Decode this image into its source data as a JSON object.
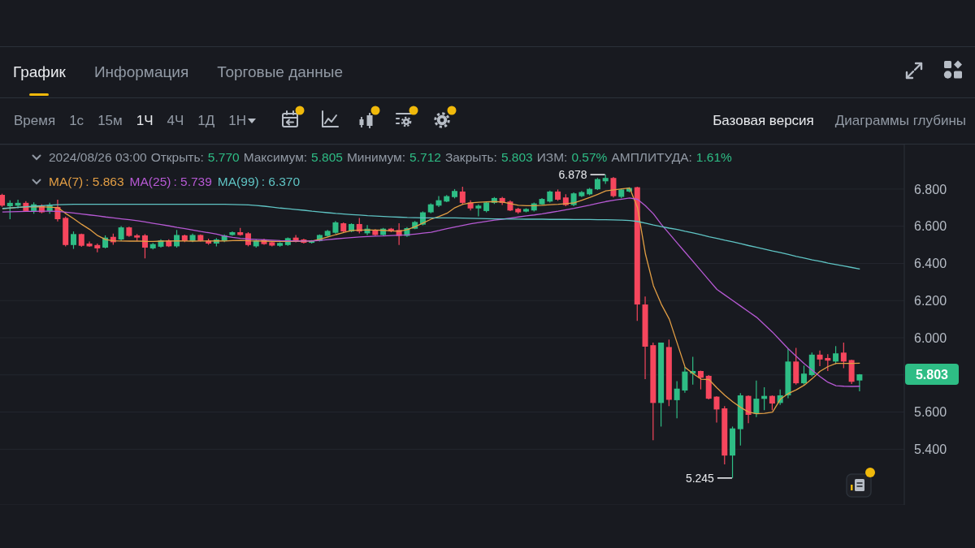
{
  "chart_data": {
    "type": "candlestick",
    "categories": [
      null,
      null,
      null,
      null,
      null,
      null,
      null,
      null,
      null,
      null,
      null,
      null,
      null,
      null,
      null,
      null,
      null,
      null,
      null,
      null,
      null,
      null,
      null,
      null,
      null,
      null,
      null,
      null,
      null,
      null,
      null,
      null,
      null,
      null,
      null,
      null,
      null,
      null,
      null,
      null,
      null,
      null,
      null,
      null,
      null,
      null,
      null,
      null,
      null,
      null,
      null,
      null,
      null,
      null,
      null,
      null,
      null,
      null,
      null,
      null,
      null,
      null,
      null,
      null,
      null,
      null,
      null,
      null,
      null,
      null,
      null,
      null,
      null,
      null,
      null,
      null,
      null,
      null,
      null,
      null,
      null,
      null,
      null,
      null,
      null,
      null,
      null,
      null,
      null,
      null,
      null,
      null,
      null,
      null,
      null,
      null,
      null,
      null,
      null,
      null,
      null,
      null,
      null,
      null,
      null,
      null,
      null,
      null,
      null
    ],
    "ohlc": [
      [
        6.769,
        6.775,
        6.705,
        6.711
      ],
      [
        6.708,
        6.74,
        6.638,
        6.726
      ],
      [
        6.711,
        6.743,
        6.696,
        6.726
      ],
      [
        6.726,
        6.735,
        6.677,
        6.682
      ],
      [
        6.682,
        6.729,
        6.667,
        6.718
      ],
      [
        6.711,
        6.718,
        6.67,
        6.675
      ],
      [
        6.682,
        6.726,
        6.667,
        6.714
      ],
      [
        6.704,
        6.743,
        6.626,
        6.638
      ],
      [
        6.645,
        6.652,
        6.492,
        6.499
      ],
      [
        6.499,
        6.572,
        6.478,
        6.558
      ],
      [
        6.558,
        6.56,
        6.49,
        6.495
      ],
      [
        6.507,
        6.518,
        6.489,
        6.492
      ],
      [
        6.499,
        6.507,
        6.46,
        6.481
      ],
      [
        6.485,
        6.551,
        6.481,
        6.539
      ],
      [
        6.543,
        6.56,
        6.5,
        6.514
      ],
      [
        6.529,
        6.601,
        6.521,
        6.594
      ],
      [
        6.594,
        6.598,
        6.543,
        6.548
      ],
      [
        6.551,
        6.558,
        6.521,
        6.539
      ],
      [
        6.551,
        6.558,
        6.427,
        6.485
      ],
      [
        6.481,
        6.51,
        6.475,
        6.504
      ],
      [
        6.49,
        6.53,
        6.485,
        6.524
      ],
      [
        6.524,
        6.53,
        6.488,
        6.492
      ],
      [
        6.492,
        6.58,
        6.485,
        6.553
      ],
      [
        6.551,
        6.555,
        6.515,
        6.521
      ],
      [
        6.521,
        6.56,
        6.515,
        6.553
      ],
      [
        6.553,
        6.556,
        6.518,
        6.521
      ],
      [
        6.524,
        6.533,
        6.5,
        6.507
      ],
      [
        6.507,
        6.536,
        6.492,
        6.529
      ],
      [
        6.521,
        6.556,
        6.515,
        6.551
      ],
      [
        6.553,
        6.572,
        6.55,
        6.568
      ],
      [
        6.568,
        6.591,
        6.55,
        6.553
      ],
      [
        6.562,
        6.568,
        6.492,
        6.499
      ],
      [
        6.492,
        6.529,
        6.485,
        6.524
      ],
      [
        6.529,
        6.533,
        6.5,
        6.504
      ],
      [
        6.514,
        6.518,
        6.492,
        6.496
      ],
      [
        6.495,
        6.514,
        6.49,
        6.51
      ],
      [
        6.499,
        6.54,
        6.495,
        6.536
      ],
      [
        6.539,
        6.553,
        6.514,
        6.521
      ],
      [
        6.529,
        6.533,
        6.507,
        6.511
      ],
      [
        6.511,
        6.525,
        6.507,
        6.521
      ],
      [
        6.521,
        6.556,
        6.518,
        6.553
      ],
      [
        6.548,
        6.58,
        6.543,
        6.575
      ],
      [
        6.565,
        6.628,
        6.56,
        6.621
      ],
      [
        6.616,
        6.621,
        6.568,
        6.572
      ],
      [
        6.572,
        6.616,
        6.568,
        6.612
      ],
      [
        6.612,
        6.645,
        6.562,
        6.572
      ],
      [
        6.562,
        6.606,
        6.553,
        6.587
      ],
      [
        6.58,
        6.584,
        6.548,
        6.553
      ],
      [
        6.553,
        6.591,
        6.548,
        6.587
      ],
      [
        6.587,
        6.591,
        6.568,
        6.572
      ],
      [
        6.58,
        6.616,
        6.499,
        6.548
      ],
      [
        6.548,
        6.595,
        6.543,
        6.59
      ],
      [
        6.587,
        6.628,
        6.584,
        6.623
      ],
      [
        6.609,
        6.68,
        6.605,
        6.675
      ],
      [
        6.675,
        6.723,
        6.67,
        6.718
      ],
      [
        6.711,
        6.762,
        6.704,
        6.74
      ],
      [
        6.733,
        6.768,
        6.73,
        6.762
      ],
      [
        6.757,
        6.8,
        6.75,
        6.79
      ],
      [
        6.787,
        6.813,
        6.718,
        6.726
      ],
      [
        6.728,
        6.74,
        6.685,
        6.696
      ],
      [
        6.696,
        6.718,
        6.653,
        6.711
      ],
      [
        6.682,
        6.733,
        6.675,
        6.728
      ],
      [
        6.726,
        6.757,
        6.72,
        6.752
      ],
      [
        6.752,
        6.758,
        6.714,
        6.726
      ],
      [
        6.733,
        6.74,
        6.682,
        6.685
      ],
      [
        6.694,
        6.699,
        6.667,
        6.675
      ],
      [
        6.679,
        6.697,
        6.675,
        6.693
      ],
      [
        6.685,
        6.728,
        6.68,
        6.723
      ],
      [
        6.718,
        6.752,
        6.714,
        6.747
      ],
      [
        6.733,
        6.792,
        6.728,
        6.787
      ],
      [
        6.787,
        6.798,
        6.737,
        6.743
      ],
      [
        6.755,
        6.772,
        6.708,
        6.714
      ],
      [
        6.714,
        6.782,
        6.708,
        6.777
      ],
      [
        6.762,
        6.79,
        6.757,
        6.784
      ],
      [
        6.772,
        6.806,
        6.767,
        6.801
      ],
      [
        6.799,
        6.86,
        6.795,
        6.854
      ],
      [
        6.842,
        6.878,
        6.828,
        6.86
      ],
      [
        6.86,
        6.865,
        6.755,
        6.762
      ],
      [
        6.758,
        6.804,
        6.75,
        6.798
      ],
      [
        6.787,
        6.81,
        6.782,
        6.806
      ],
      [
        6.81,
        6.813,
        6.091,
        6.179
      ],
      [
        6.179,
        6.222,
        5.777,
        5.952
      ],
      [
        5.96,
        5.974,
        5.449,
        5.649
      ],
      [
        5.649,
        5.974,
        5.522,
        5.974
      ],
      [
        5.95,
        5.99,
        5.632,
        5.666
      ],
      [
        5.664,
        5.766,
        5.566,
        5.726
      ],
      [
        5.716,
        5.843,
        5.704,
        5.818
      ],
      [
        5.807,
        5.897,
        5.748,
        5.821
      ],
      [
        5.821,
        5.823,
        5.722,
        5.785
      ],
      [
        5.795,
        5.799,
        5.668,
        5.672
      ],
      [
        5.683,
        5.685,
        5.544,
        5.614
      ],
      [
        5.62,
        5.632,
        5.318,
        5.366
      ],
      [
        5.366,
        5.522,
        5.245,
        5.512
      ],
      [
        5.508,
        5.702,
        5.42,
        5.69
      ],
      [
        5.687,
        5.69,
        5.54,
        5.585
      ],
      [
        5.591,
        5.77,
        5.573,
        5.672
      ],
      [
        5.671,
        5.734,
        5.61,
        5.687
      ],
      [
        5.687,
        5.69,
        5.61,
        5.646
      ],
      [
        5.649,
        5.722,
        5.639,
        5.69
      ],
      [
        5.69,
        5.941,
        5.675,
        5.872
      ],
      [
        5.872,
        5.945,
        5.748,
        5.755
      ],
      [
        5.755,
        5.85,
        5.748,
        5.807
      ],
      [
        5.799,
        5.92,
        5.792,
        5.909
      ],
      [
        5.909,
        5.931,
        5.847,
        5.883
      ],
      [
        5.891,
        5.912,
        5.821,
        5.877
      ],
      [
        5.872,
        5.955,
        5.858,
        5.916
      ],
      [
        5.92,
        5.974,
        5.836,
        5.872
      ],
      [
        5.88,
        5.882,
        5.751,
        5.763
      ],
      [
        5.77,
        5.805,
        5.712,
        5.803
      ]
    ],
    "colors": [
      "#f6465d",
      "#2ebd85",
      "#2ebd85",
      "#f6465d",
      "#2ebd85",
      "#f6465d",
      "#2ebd85",
      "#f6465d",
      "#f6465d",
      "#2ebd85",
      "#f6465d",
      "#f6465d",
      "#f6465d",
      "#2ebd85",
      "#f6465d",
      "#2ebd85",
      "#f6465d",
      "#f6465d",
      "#f6465d",
      "#2ebd85",
      "#2ebd85",
      "#f6465d",
      "#2ebd85",
      "#f6465d",
      "#2ebd85",
      "#f6465d",
      "#f6465d",
      "#2ebd85",
      "#2ebd85",
      "#2ebd85",
      "#f6465d",
      "#f6465d",
      "#2ebd85",
      "#f6465d",
      "#f6465d",
      "#2ebd85",
      "#2ebd85",
      "#f6465d",
      "#f6465d",
      "#2ebd85",
      "#2ebd85",
      "#2ebd85",
      "#2ebd85",
      "#f6465d",
      "#2ebd85",
      "#f6465d",
      "#2ebd85",
      "#f6465d",
      "#2ebd85",
      "#f6465d",
      "#f6465d",
      "#2ebd85",
      "#2ebd85",
      "#2ebd85",
      "#2ebd85",
      "#2ebd85",
      "#2ebd85",
      "#2ebd85",
      "#f6465d",
      "#f6465d",
      "#2ebd85",
      "#2ebd85",
      "#2ebd85",
      "#f6465d",
      "#f6465d",
      "#f6465d",
      "#2ebd85",
      "#2ebd85",
      "#2ebd85",
      "#2ebd85",
      "#f6465d",
      "#f6465d",
      "#2ebd85",
      "#2ebd85",
      "#2ebd85",
      "#2ebd85",
      "#2ebd85",
      "#f6465d",
      "#2ebd85",
      "#2ebd85",
      "#f6465d",
      "#f6465d",
      "#f6465d",
      "#2ebd85",
      "#f6465d",
      "#2ebd85",
      "#2ebd85",
      "#2ebd85",
      "#f6465d",
      "#f6465d",
      "#f6465d",
      "#f6465d",
      "#2ebd85",
      "#2ebd85",
      "#f6465d",
      "#2ebd85",
      "#2ebd85",
      "#f6465d",
      "#2ebd85",
      "#2ebd85",
      "#f6465d",
      "#2ebd85",
      "#2ebd85",
      "#f6465d",
      "#f6465d",
      "#2ebd85",
      "#f6465d",
      "#f6465d",
      "#2ebd85"
    ],
    "series": [
      {
        "name": "MA(7)",
        "type": "line",
        "color": "#e29e44",
        "values": [
          6.694,
          6.698,
          6.702,
          6.704,
          6.705,
          6.704,
          6.703,
          6.7,
          6.668,
          6.64,
          6.61,
          6.583,
          6.55,
          6.528,
          6.522,
          6.521,
          6.52,
          6.521,
          6.519,
          6.518,
          6.52,
          6.521,
          6.522,
          6.521,
          6.52,
          6.521,
          6.521,
          6.522,
          6.521,
          6.523,
          6.524,
          6.522,
          6.521,
          6.52,
          6.519,
          6.518,
          6.518,
          6.519,
          6.52,
          6.521,
          6.53,
          6.542,
          6.555,
          6.566,
          6.577,
          6.58,
          6.58,
          6.58,
          6.578,
          6.575,
          6.573,
          6.582,
          6.598,
          6.618,
          6.638,
          6.653,
          6.67,
          6.7,
          6.718,
          6.726,
          6.729,
          6.731,
          6.733,
          6.73,
          6.722,
          6.713,
          6.711,
          6.711,
          6.713,
          6.716,
          6.718,
          6.722,
          6.726,
          6.74,
          6.755,
          6.772,
          6.79,
          6.796,
          6.801,
          6.806,
          6.7,
          6.45,
          6.28,
          6.18,
          6.1,
          5.97,
          5.84,
          5.807,
          5.777,
          5.775,
          5.73,
          5.69,
          5.655,
          5.625,
          5.6,
          5.591,
          5.593,
          5.6,
          5.67,
          5.7,
          5.72,
          5.745,
          5.78,
          5.82,
          5.845,
          5.862,
          5.862,
          5.862,
          5.863
        ]
      },
      {
        "name": "MA(25)",
        "type": "line",
        "color": "#b659d3",
        "values": [
          6.677,
          6.678,
          6.679,
          6.68,
          6.68,
          6.681,
          6.681,
          6.68,
          6.676,
          6.671,
          6.666,
          6.661,
          6.656,
          6.65,
          6.645,
          6.64,
          6.635,
          6.63,
          6.623,
          6.616,
          6.609,
          6.602,
          6.594,
          6.587,
          6.58,
          6.572,
          6.565,
          6.558,
          6.547,
          6.54,
          6.535,
          6.531,
          6.529,
          6.527,
          6.525,
          6.523,
          6.522,
          6.521,
          6.521,
          6.521,
          6.524,
          6.528,
          6.532,
          6.536,
          6.539,
          6.542,
          6.545,
          6.547,
          6.548,
          6.55,
          6.552,
          6.553,
          6.558,
          6.563,
          6.568,
          6.577,
          6.587,
          6.596,
          6.605,
          6.613,
          6.62,
          6.627,
          6.633,
          6.638,
          6.644,
          6.65,
          6.656,
          6.661,
          6.667,
          6.674,
          6.681,
          6.689,
          6.696,
          6.705,
          6.714,
          6.724,
          6.733,
          6.74,
          6.746,
          6.752,
          6.745,
          6.71,
          6.667,
          6.61,
          6.56,
          6.51,
          6.46,
          6.41,
          6.36,
          6.31,
          6.26,
          6.23,
          6.2,
          6.17,
          6.14,
          6.11,
          6.07,
          6.03,
          5.985,
          5.94,
          5.9,
          5.86,
          5.825,
          5.79,
          5.76,
          5.742,
          5.739,
          5.738,
          5.739
        ]
      },
      {
        "name": "MA(99)",
        "type": "line",
        "color": "#5fc4c4",
        "values": [
          6.696,
          6.699,
          6.702,
          6.705,
          6.708,
          6.711,
          6.714,
          6.716,
          6.717,
          6.718,
          6.718,
          6.718,
          6.718,
          6.718,
          6.718,
          6.718,
          6.718,
          6.718,
          6.718,
          6.718,
          6.718,
          6.718,
          6.718,
          6.718,
          6.718,
          6.718,
          6.718,
          6.718,
          6.718,
          6.717,
          6.716,
          6.715,
          6.712,
          6.708,
          6.703,
          6.698,
          6.694,
          6.69,
          6.686,
          6.681,
          6.677,
          6.673,
          6.669,
          6.666,
          6.663,
          6.66,
          6.657,
          6.655,
          6.653,
          6.651,
          6.649,
          6.647,
          6.646,
          6.645,
          6.645,
          6.645,
          6.645,
          6.645,
          6.644,
          6.643,
          6.642,
          6.641,
          6.64,
          6.64,
          6.639,
          6.639,
          6.638,
          6.638,
          6.638,
          6.637,
          6.637,
          6.637,
          6.636,
          6.636,
          6.636,
          6.635,
          6.635,
          6.634,
          6.633,
          6.631,
          6.626,
          6.617,
          6.607,
          6.598,
          6.59,
          6.583,
          6.573,
          6.564,
          6.554,
          6.544,
          6.535,
          6.525,
          6.516,
          6.506,
          6.496,
          6.487,
          6.477,
          6.467,
          6.458,
          6.448,
          6.438,
          6.429,
          6.419,
          6.411,
          6.402,
          6.394,
          6.386,
          6.378,
          6.37
        ]
      }
    ],
    "ylim": [
      5.1,
      7.04
    ],
    "yticks": [
      {
        "value": 5.4,
        "label": "5.400"
      },
      {
        "value": 5.6,
        "label": "5.600"
      },
      {
        "value": 5.8,
        "label": null
      },
      {
        "value": 6.0,
        "label": "6.000"
      },
      {
        "value": 6.2,
        "label": "6.200"
      },
      {
        "value": 6.4,
        "label": "6.400"
      },
      {
        "value": 6.6,
        "label": "6.600"
      },
      {
        "value": 6.8,
        "label": "6.800"
      }
    ],
    "grid": "y",
    "legend": "top left",
    "marker": "none",
    "tick_labels": "y",
    "annotations": [
      "График",
      "Информация",
      "Торговые данные",
      "Время",
      "1с",
      "15м",
      "1Ч",
      "4Ч",
      "1Д",
      "1Н",
      "Базовая версия",
      "Диаграммы глубины",
      "2024/08/26 03:00",
      "Открыть:",
      "5.770",
      "Максимум:",
      "5.805",
      "Минимум:",
      "5.712",
      "Закрыть:",
      "5.803",
      "ИЗМ:",
      "0.57%",
      "АМПЛИТУДА:",
      "1.61%",
      "6.878",
      "5.245",
      "5.803",
      ": 5.863",
      ": 5.739",
      ": 6.370"
    ]
  }
}
